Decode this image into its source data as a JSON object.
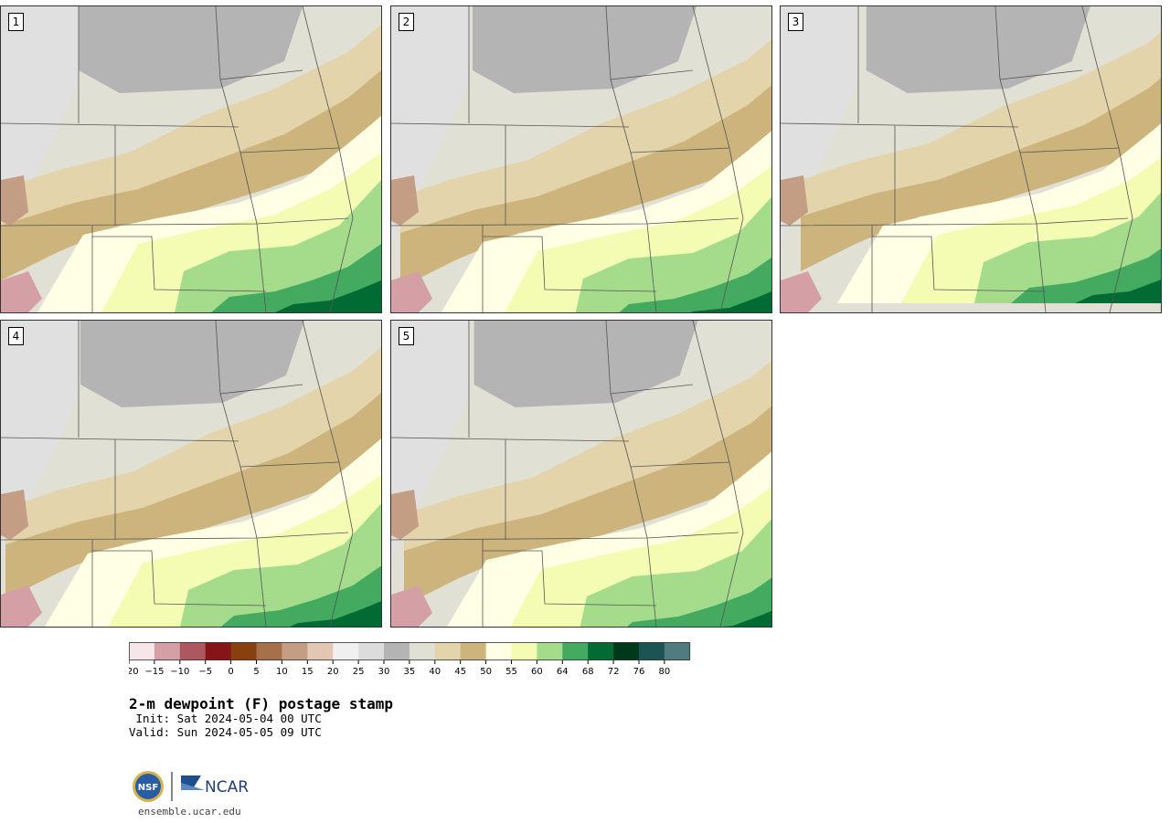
{
  "panels": [
    {
      "label": "1"
    },
    {
      "label": "2"
    },
    {
      "label": "3"
    },
    {
      "label": "4"
    },
    {
      "label": "5"
    }
  ],
  "legend": {
    "ticks": [
      "−20",
      "−15",
      "−10",
      "−5",
      "0",
      "5",
      "10",
      "15",
      "20",
      "25",
      "30",
      "35",
      "40",
      "45",
      "50",
      "55",
      "60",
      "64",
      "68",
      "72",
      "76",
      "80"
    ],
    "colors": [
      "#f6e6ea",
      "#d4a0a6",
      "#ad5860",
      "#861418",
      "#884010",
      "#a6704a",
      "#c49e84",
      "#e2c8b4",
      "#f0f0f0",
      "#dcdcdc",
      "#b4b4b4",
      "#e0e0d4",
      "#e4d4ac",
      "#ccb47c",
      "#ffffe6",
      "#f4fcb4",
      "#a4dc8c",
      "#44aa60",
      "#006c34",
      "#00381c",
      "#1c5454",
      "#507c80"
    ]
  },
  "map_colors": {
    "very_dry": "#d4a0a6",
    "dry": "#c49e84",
    "grey_light": "#e0e0e0",
    "grey_mid": "#b4b4b4",
    "pale": "#e0e0d4",
    "tan": "#e4d4ac",
    "brown": "#ccb47c",
    "cream": "#ffffe6",
    "yellow": "#f4fcb4",
    "green_light": "#a4dc8c",
    "green": "#44aa60",
    "green_dark": "#006c34"
  },
  "title": {
    "main": "2-m dewpoint (F) postage stamp",
    "init": " Init: Sat 2024-05-04 00 UTC",
    "valid": "Valid: Sun 2024-05-05 09 UTC"
  },
  "logos": {
    "nsf": "NSF",
    "ncar": "NCAR"
  },
  "footer": {
    "url": "ensemble.ucar.edu"
  }
}
